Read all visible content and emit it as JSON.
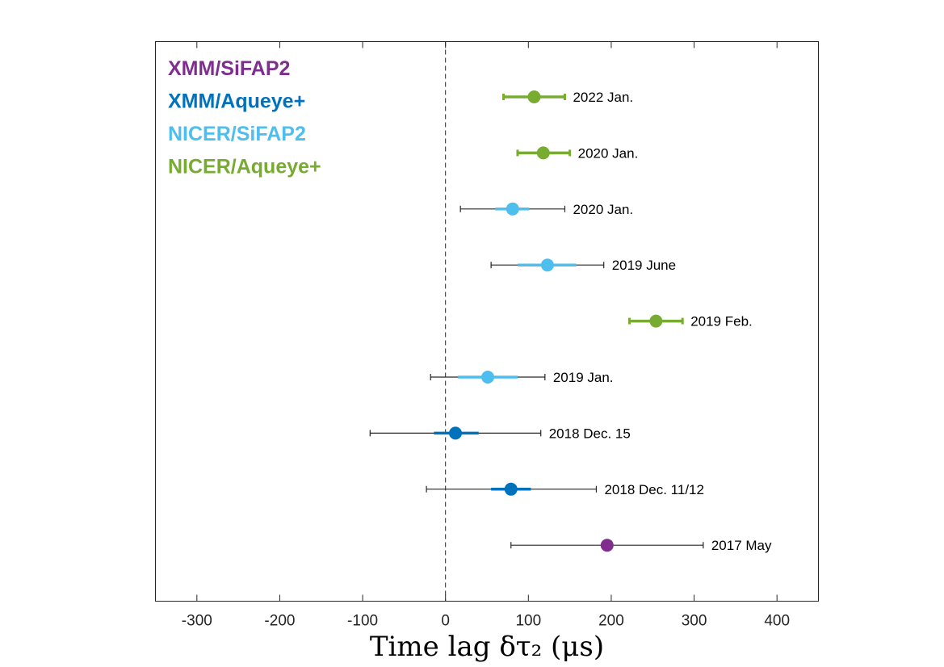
{
  "chart_data": {
    "type": "scatter",
    "xlabel": "Time lag δτ₂ (μs)",
    "xlim": [
      -350,
      450
    ],
    "xticks": [
      -300,
      -200,
      -100,
      0,
      100,
      200,
      300,
      400
    ],
    "xtick_labels": [
      "-300",
      "-200",
      "-100",
      "0",
      "100",
      "200",
      "300",
      "400"
    ],
    "grid": false,
    "reference_line": {
      "x": 0,
      "style": "dashed"
    },
    "legend": {
      "placement": "top-left",
      "entries": [
        {
          "label": "XMM/SiFAP2",
          "color": "#7e2f8e"
        },
        {
          "label": "XMM/Aqueye+",
          "color": "#0072bd"
        },
        {
          "label": "NICER/SiFAP2",
          "color": "#4dbeee"
        },
        {
          "label": "NICER/Aqueye+",
          "color": "#77ac30"
        }
      ]
    },
    "points": [
      {
        "label": "2022 Jan.",
        "series": "NICER/Aqueye+",
        "x": 107,
        "stat_err": [
          70,
          144
        ],
        "total_err": [
          70,
          144
        ]
      },
      {
        "label": "2020 Jan.",
        "series": "NICER/Aqueye+",
        "x": 118,
        "stat_err": [
          87,
          150
        ],
        "total_err": [
          87,
          150
        ]
      },
      {
        "label": "2020 Jan.",
        "series": "NICER/SiFAP2",
        "x": 81,
        "stat_err": [
          60,
          101
        ],
        "total_err": [
          18,
          144
        ]
      },
      {
        "label": "2019 June",
        "series": "NICER/SiFAP2",
        "x": 123,
        "stat_err": [
          87,
          158
        ],
        "total_err": [
          55,
          191
        ]
      },
      {
        "label": "2019 Feb.",
        "series": "NICER/Aqueye+",
        "x": 254,
        "stat_err": [
          222,
          286
        ],
        "total_err": [
          222,
          286
        ]
      },
      {
        "label": "2019 Jan.",
        "series": "NICER/SiFAP2",
        "x": 51,
        "stat_err": [
          15,
          87
        ],
        "total_err": [
          -18,
          120
        ]
      },
      {
        "label": "2018 Dec. 15",
        "series": "XMM/Aqueye+",
        "x": 12,
        "stat_err": [
          -14,
          40
        ],
        "total_err": [
          -91,
          115
        ]
      },
      {
        "label": "2018 Dec. 11/12",
        "series": "XMM/Aqueye+",
        "x": 79,
        "stat_err": [
          55,
          103
        ],
        "total_err": [
          -23,
          182
        ]
      },
      {
        "label": "2017 May",
        "series": "XMM/SiFAP2",
        "x": 195,
        "stat_err": [
          195,
          195
        ],
        "total_err": [
          79,
          311
        ]
      }
    ]
  }
}
